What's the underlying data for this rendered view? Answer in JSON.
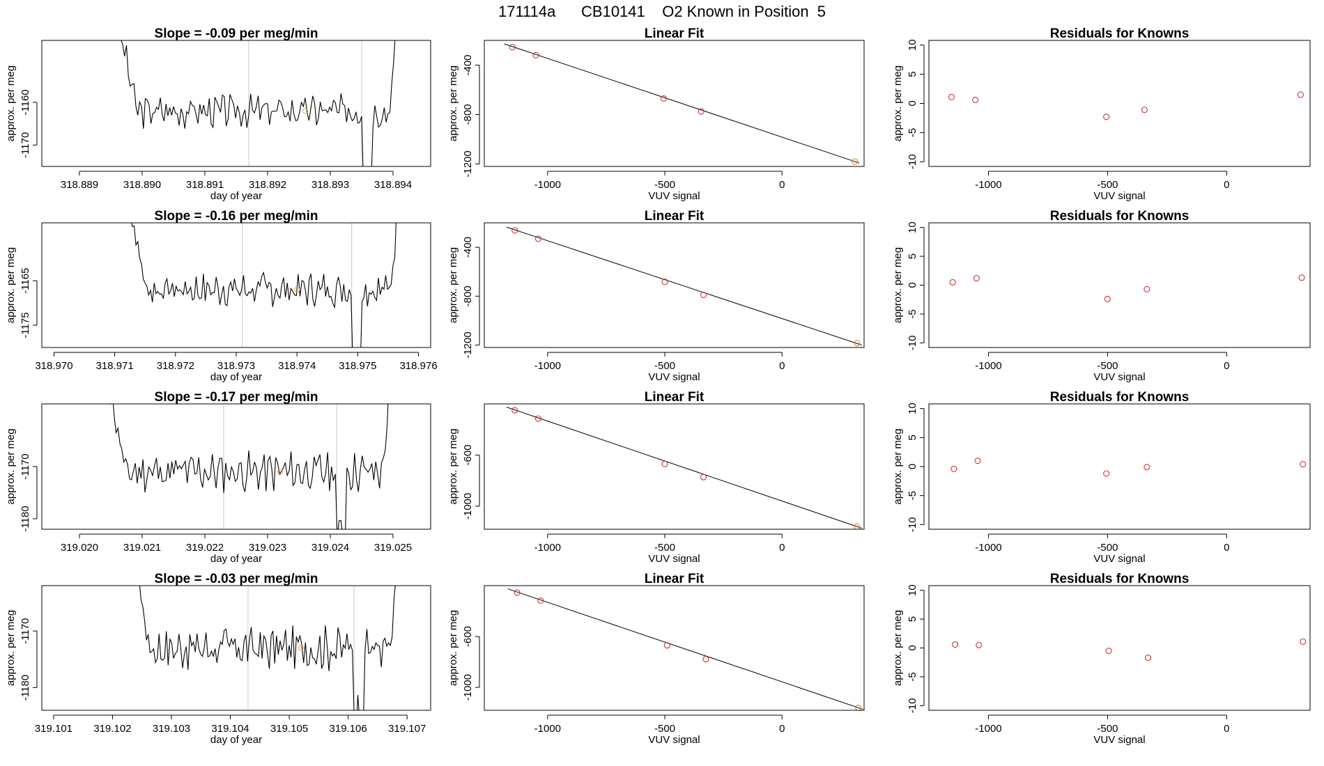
{
  "page_title": "171114a      CB10141    O2 Known in Position  5",
  "colors": {
    "trace": "#000000",
    "marker": "#cc3333",
    "fit_marker": "#e08a1e",
    "dim_marker": "#e8a84a",
    "vline": "#c8c8c8"
  },
  "chart_data": [
    {
      "type": "line",
      "title": "Slope =  -0.09  per meg/min",
      "xlabel": "day of year",
      "ylabel": "approx. per meg",
      "xlim": [
        318.8884,
        318.8946
      ],
      "ylim": [
        -1175,
        -1145.5
      ],
      "xticks": [
        318.889,
        318.89,
        318.891,
        318.892,
        318.893,
        318.894
      ],
      "xtick_labels": [
        "318.889",
        "318.890",
        "318.891",
        "318.892",
        "318.893",
        "318.894"
      ],
      "yticks": [
        -1170,
        -1160
      ],
      "ytick_labels": [
        "-1170",
        "-1160"
      ],
      "vlines": [
        318.8917,
        318.8935
      ],
      "x_start": 318.8896,
      "x_end": 318.8941,
      "base": -1162,
      "seed": 3,
      "spike_start": 318.8935,
      "spike_depth": 16,
      "marker": {
        "x": 318.8926,
        "y": -1162
      }
    },
    {
      "type": "scatter",
      "title": "Linear Fit",
      "xlabel": "VUV signal",
      "ylabel": "approx. per meg",
      "xlim": [
        -1270,
        350
      ],
      "ylim": [
        -1220,
        -200
      ],
      "xticks": [
        -1000,
        -500,
        0
      ],
      "xtick_labels": [
        "-1000",
        "-500",
        "0"
      ],
      "yticks": [
        -1200,
        -800,
        -400
      ],
      "ytick_labels": [
        "-1200",
        "-800",
        "-400"
      ],
      "x": [
        -1150,
        -1050,
        -505,
        -345,
        310
      ],
      "y": [
        -255,
        -320,
        -670,
        -775,
        -1180
      ],
      "fit": [
        [
          -1185,
          -228
        ],
        [
          330,
          -1193
        ]
      ],
      "last_orange": true
    },
    {
      "type": "scatter",
      "title": "Residuals for Knowns",
      "xlabel": "VUV signal",
      "ylabel": "approx. per meg",
      "xlim": [
        -1250,
        350
      ],
      "ylim": [
        -10.8,
        10.8
      ],
      "xticks": [
        -1000,
        -500,
        0
      ],
      "xtick_labels": [
        "-1000",
        "-500",
        "0"
      ],
      "yticks": [
        -10,
        -5,
        0,
        5,
        10
      ],
      "ytick_labels": [
        "-10",
        "-5",
        "0",
        "5",
        "10"
      ],
      "x": [
        -1155,
        -1055,
        -505,
        -345,
        310
      ],
      "y": [
        1.1,
        0.6,
        -2.3,
        -1.1,
        1.5
      ]
    },
    {
      "type": "line",
      "title": "Slope =  -0.16  per meg/min",
      "xlabel": "day of year",
      "ylabel": "approx. per meg",
      "xlim": [
        318.9698,
        318.9762
      ],
      "ylim": [
        -1180,
        -1152
      ],
      "xticks": [
        318.97,
        318.971,
        318.972,
        318.973,
        318.974,
        318.975,
        318.976
      ],
      "xtick_labels": [
        "318.970",
        "318.971",
        "318.972",
        "318.973",
        "318.974",
        "318.975",
        "318.976"
      ],
      "yticks": [
        -1175,
        -1165
      ],
      "ytick_labels": [
        "-1175",
        "-1165"
      ],
      "vlines": [
        318.9731,
        318.9749
      ],
      "x_start": 318.9712,
      "x_end": 318.9757,
      "base": -1167,
      "seed": 7,
      "spike_start": 318.9749,
      "spike_depth": 16,
      "marker": {
        "x": 318.974,
        "y": -1167
      }
    },
    {
      "type": "scatter",
      "title": "Linear Fit",
      "xlabel": "VUV signal",
      "ylabel": "approx. per meg",
      "xlim": [
        -1270,
        350
      ],
      "ylim": [
        -1220,
        -200
      ],
      "xticks": [
        -1000,
        -500,
        0
      ],
      "xtick_labels": [
        "-1000",
        "-500",
        "0"
      ],
      "yticks": [
        -1200,
        -800,
        -400
      ],
      "ytick_labels": [
        "-1200",
        "-800",
        "-400"
      ],
      "x": [
        -1140,
        -1040,
        -500,
        -335,
        320
      ],
      "y": [
        -262,
        -330,
        -683,
        -790,
        -1185
      ],
      "fit": [
        [
          -1175,
          -235
        ],
        [
          340,
          -1200
        ]
      ],
      "last_orange": true
    },
    {
      "type": "scatter",
      "title": "Residuals for Knowns",
      "xlabel": "VUV signal",
      "ylabel": "approx. per meg",
      "xlim": [
        -1250,
        350
      ],
      "ylim": [
        -10.8,
        10.8
      ],
      "xticks": [
        -1000,
        -500,
        0
      ],
      "xtick_labels": [
        "-1000",
        "-500",
        "0"
      ],
      "yticks": [
        -10,
        -5,
        0,
        5,
        10
      ],
      "ytick_labels": [
        "-10",
        "-5",
        "0",
        "5",
        "10"
      ],
      "x": [
        -1150,
        -1050,
        -500,
        -335,
        315
      ],
      "y": [
        0.5,
        1.2,
        -2.4,
        -0.7,
        1.3
      ]
    },
    {
      "type": "line",
      "title": "Slope =  -0.17  per meg/min",
      "xlabel": "day of year",
      "ylabel": "approx. per meg",
      "xlim": [
        319.0194,
        319.0256
      ],
      "ylim": [
        -1182,
        -1158
      ],
      "xticks": [
        319.02,
        319.021,
        319.022,
        319.023,
        319.024,
        319.025
      ],
      "xtick_labels": [
        "319.020",
        "319.021",
        "319.022",
        "319.023",
        "319.024",
        "319.025"
      ],
      "yticks": [
        -1180,
        -1170
      ],
      "ytick_labels": [
        "-1180",
        "-1170"
      ],
      "vlines": [
        319.0223,
        319.0241
      ],
      "x_start": 319.0204,
      "x_end": 319.025,
      "base": -1171,
      "seed": 11,
      "spike_start": 319.0241,
      "spike_depth": 12,
      "marker": {
        "x": 319.0232,
        "y": -1171
      }
    },
    {
      "type": "scatter",
      "title": "Linear Fit",
      "xlabel": "VUV signal",
      "ylabel": "approx. per meg",
      "xlim": [
        -1270,
        350
      ],
      "ylim": [
        -1180,
        -200
      ],
      "xticks": [
        -1000,
        -500,
        0
      ],
      "xtick_labels": [
        "-1000",
        "-500",
        "0"
      ],
      "yticks": [
        -1000,
        -600
      ],
      "ytick_labels": [
        "-1000",
        "-600"
      ],
      "x": [
        -1140,
        -1040,
        -500,
        -335,
        320
      ],
      "y": [
        -250,
        -315,
        -670,
        -773,
        -1160
      ],
      "fit": [
        [
          -1175,
          -225
        ],
        [
          340,
          -1172
        ]
      ],
      "last_orange": true
    },
    {
      "type": "scatter",
      "title": "Residuals for Knowns",
      "xlabel": "VUV signal",
      "ylabel": "approx. per meg",
      "xlim": [
        -1250,
        350
      ],
      "ylim": [
        -10.8,
        10.8
      ],
      "xticks": [
        -1000,
        -500,
        0
      ],
      "xtick_labels": [
        "-1000",
        "-500",
        "0"
      ],
      "yticks": [
        -10,
        -5,
        0,
        5,
        10
      ],
      "ytick_labels": [
        "-10",
        "-5",
        "0",
        "5",
        "10"
      ],
      "x": [
        -1145,
        -1045,
        -505,
        -335,
        320
      ],
      "y": [
        -0.4,
        1.0,
        -1.2,
        -0.1,
        0.4
      ]
    },
    {
      "type": "line",
      "title": "Slope =  -0.03  per meg/min",
      "xlabel": "day of year",
      "ylabel": "approx. per meg",
      "xlim": [
        319.1008,
        319.1074
      ],
      "ylim": [
        -1184,
        -1162
      ],
      "xticks": [
        319.101,
        319.102,
        319.103,
        319.104,
        319.105,
        319.106,
        319.107
      ],
      "xtick_labels": [
        "319.101",
        "319.102",
        "319.103",
        "319.104",
        "319.105",
        "319.106",
        "319.107"
      ],
      "yticks": [
        -1180,
        -1170
      ],
      "ytick_labels": [
        "-1180",
        "-1170"
      ],
      "vlines": [
        319.1043,
        319.1061
      ],
      "x_start": 319.1023,
      "x_end": 319.1069,
      "base": -1173,
      "seed": 17,
      "spike_start": 319.1061,
      "spike_depth": 11,
      "marker": {
        "x": 319.1052,
        "y": -1173
      }
    },
    {
      "type": "scatter",
      "title": "Linear Fit",
      "xlabel": "VUV signal",
      "ylabel": "approx. per meg",
      "xlim": [
        -1270,
        350
      ],
      "ylim": [
        -1180,
        -200
      ],
      "xticks": [
        -1000,
        -500,
        0
      ],
      "xtick_labels": [
        "-1000",
        "-500",
        "0"
      ],
      "yticks": [
        -1000,
        -600
      ],
      "ytick_labels": [
        "-1000",
        "-600"
      ],
      "x": [
        -1130,
        -1030,
        -490,
        -325,
        325
      ],
      "y": [
        -255,
        -318,
        -670,
        -778,
        -1160
      ],
      "fit": [
        [
          -1170,
          -225
        ],
        [
          345,
          -1172
        ]
      ],
      "last_orange": true
    },
    {
      "type": "scatter",
      "title": "Residuals for Knowns",
      "xlabel": "VUV signal",
      "ylabel": "approx. per meg",
      "xlim": [
        -1250,
        350
      ],
      "ylim": [
        -10.8,
        10.8
      ],
      "xticks": [
        -1000,
        -500,
        0
      ],
      "xtick_labels": [
        "-1000",
        "-500",
        "0"
      ],
      "yticks": [
        -10,
        -5,
        0,
        5,
        10
      ],
      "ytick_labels": [
        "-10",
        "-5",
        "0",
        "5",
        "10"
      ],
      "x": [
        -1140,
        -1040,
        -495,
        -330,
        320
      ],
      "y": [
        0.6,
        0.5,
        -0.5,
        -1.7,
        1.1
      ]
    }
  ]
}
